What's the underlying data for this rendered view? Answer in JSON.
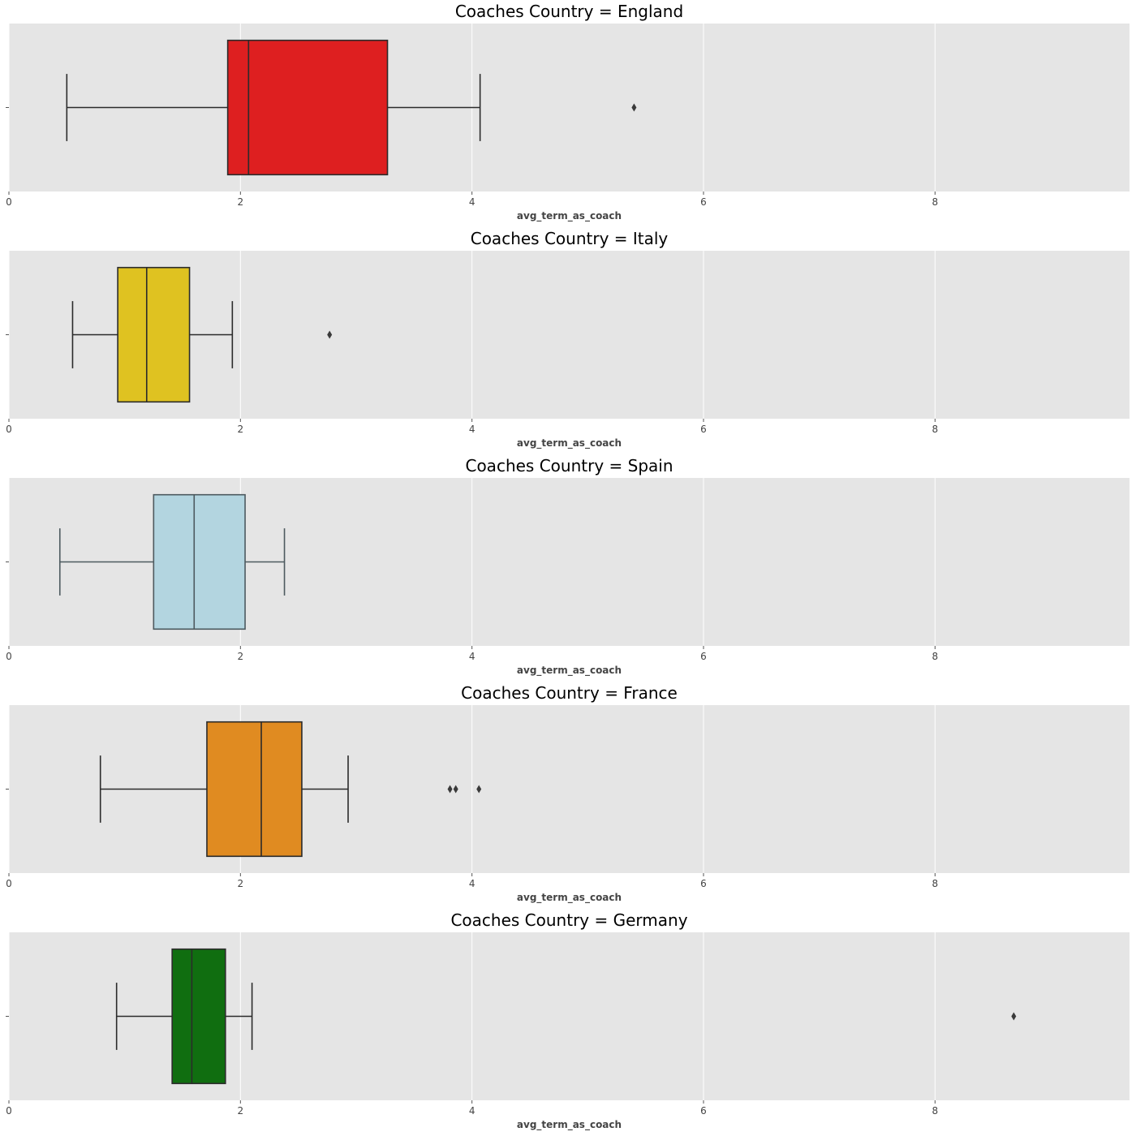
{
  "chart_data": [
    {
      "type": "box",
      "title": "Coaches Country = England",
      "xlabel": "avg_term_as_coach",
      "xlim": [
        0,
        9.68
      ],
      "xticks": [
        "0",
        "2",
        "4",
        "6",
        "8"
      ],
      "color": "#de1f20",
      "stats": {
        "whislo": 0.5,
        "q1": 1.89,
        "med": 2.07,
        "q3": 3.27,
        "whishi": 4.07,
        "fliers": [
          5.4
        ]
      }
    },
    {
      "type": "box",
      "title": "Coaches Country = Italy",
      "xlabel": "avg_term_as_coach",
      "xlim": [
        0,
        9.68
      ],
      "xticks": [
        "0",
        "2",
        "4",
        "6",
        "8"
      ],
      "color": "#dfc221",
      "stats": {
        "whislo": 0.55,
        "q1": 0.94,
        "med": 1.19,
        "q3": 1.56,
        "whishi": 1.93,
        "fliers": [
          2.77
        ]
      }
    },
    {
      "type": "box",
      "title": "Coaches Country = Spain",
      "xlabel": "avg_term_as_coach",
      "xlim": [
        0,
        9.68
      ],
      "xticks": [
        "0",
        "2",
        "4",
        "6",
        "8"
      ],
      "color": "#b3d5e0",
      "stats": {
        "whislo": 0.44,
        "q1": 1.25,
        "med": 1.6,
        "q3": 2.04,
        "whishi": 2.38,
        "fliers": []
      }
    },
    {
      "type": "box",
      "title": "Coaches Country = France",
      "xlabel": "avg_term_as_coach",
      "xlim": [
        0,
        9.68
      ],
      "xticks": [
        "0",
        "2",
        "4",
        "6",
        "8"
      ],
      "color": "#e08b21",
      "stats": {
        "whislo": 0.79,
        "q1": 1.71,
        "med": 2.18,
        "q3": 2.53,
        "whishi": 2.93,
        "fliers": [
          3.81,
          3.86,
          4.06
        ]
      }
    },
    {
      "type": "box",
      "title": "Coaches Country = Germany",
      "xlabel": "avg_term_as_coach",
      "xlim": [
        0,
        9.68
      ],
      "xticks": [
        "0",
        "2",
        "4",
        "6",
        "8"
      ],
      "color": "#106e10",
      "stats": {
        "whislo": 0.93,
        "q1": 1.41,
        "med": 1.58,
        "q3": 1.87,
        "whishi": 2.1,
        "fliers": [
          8.68
        ]
      }
    }
  ]
}
